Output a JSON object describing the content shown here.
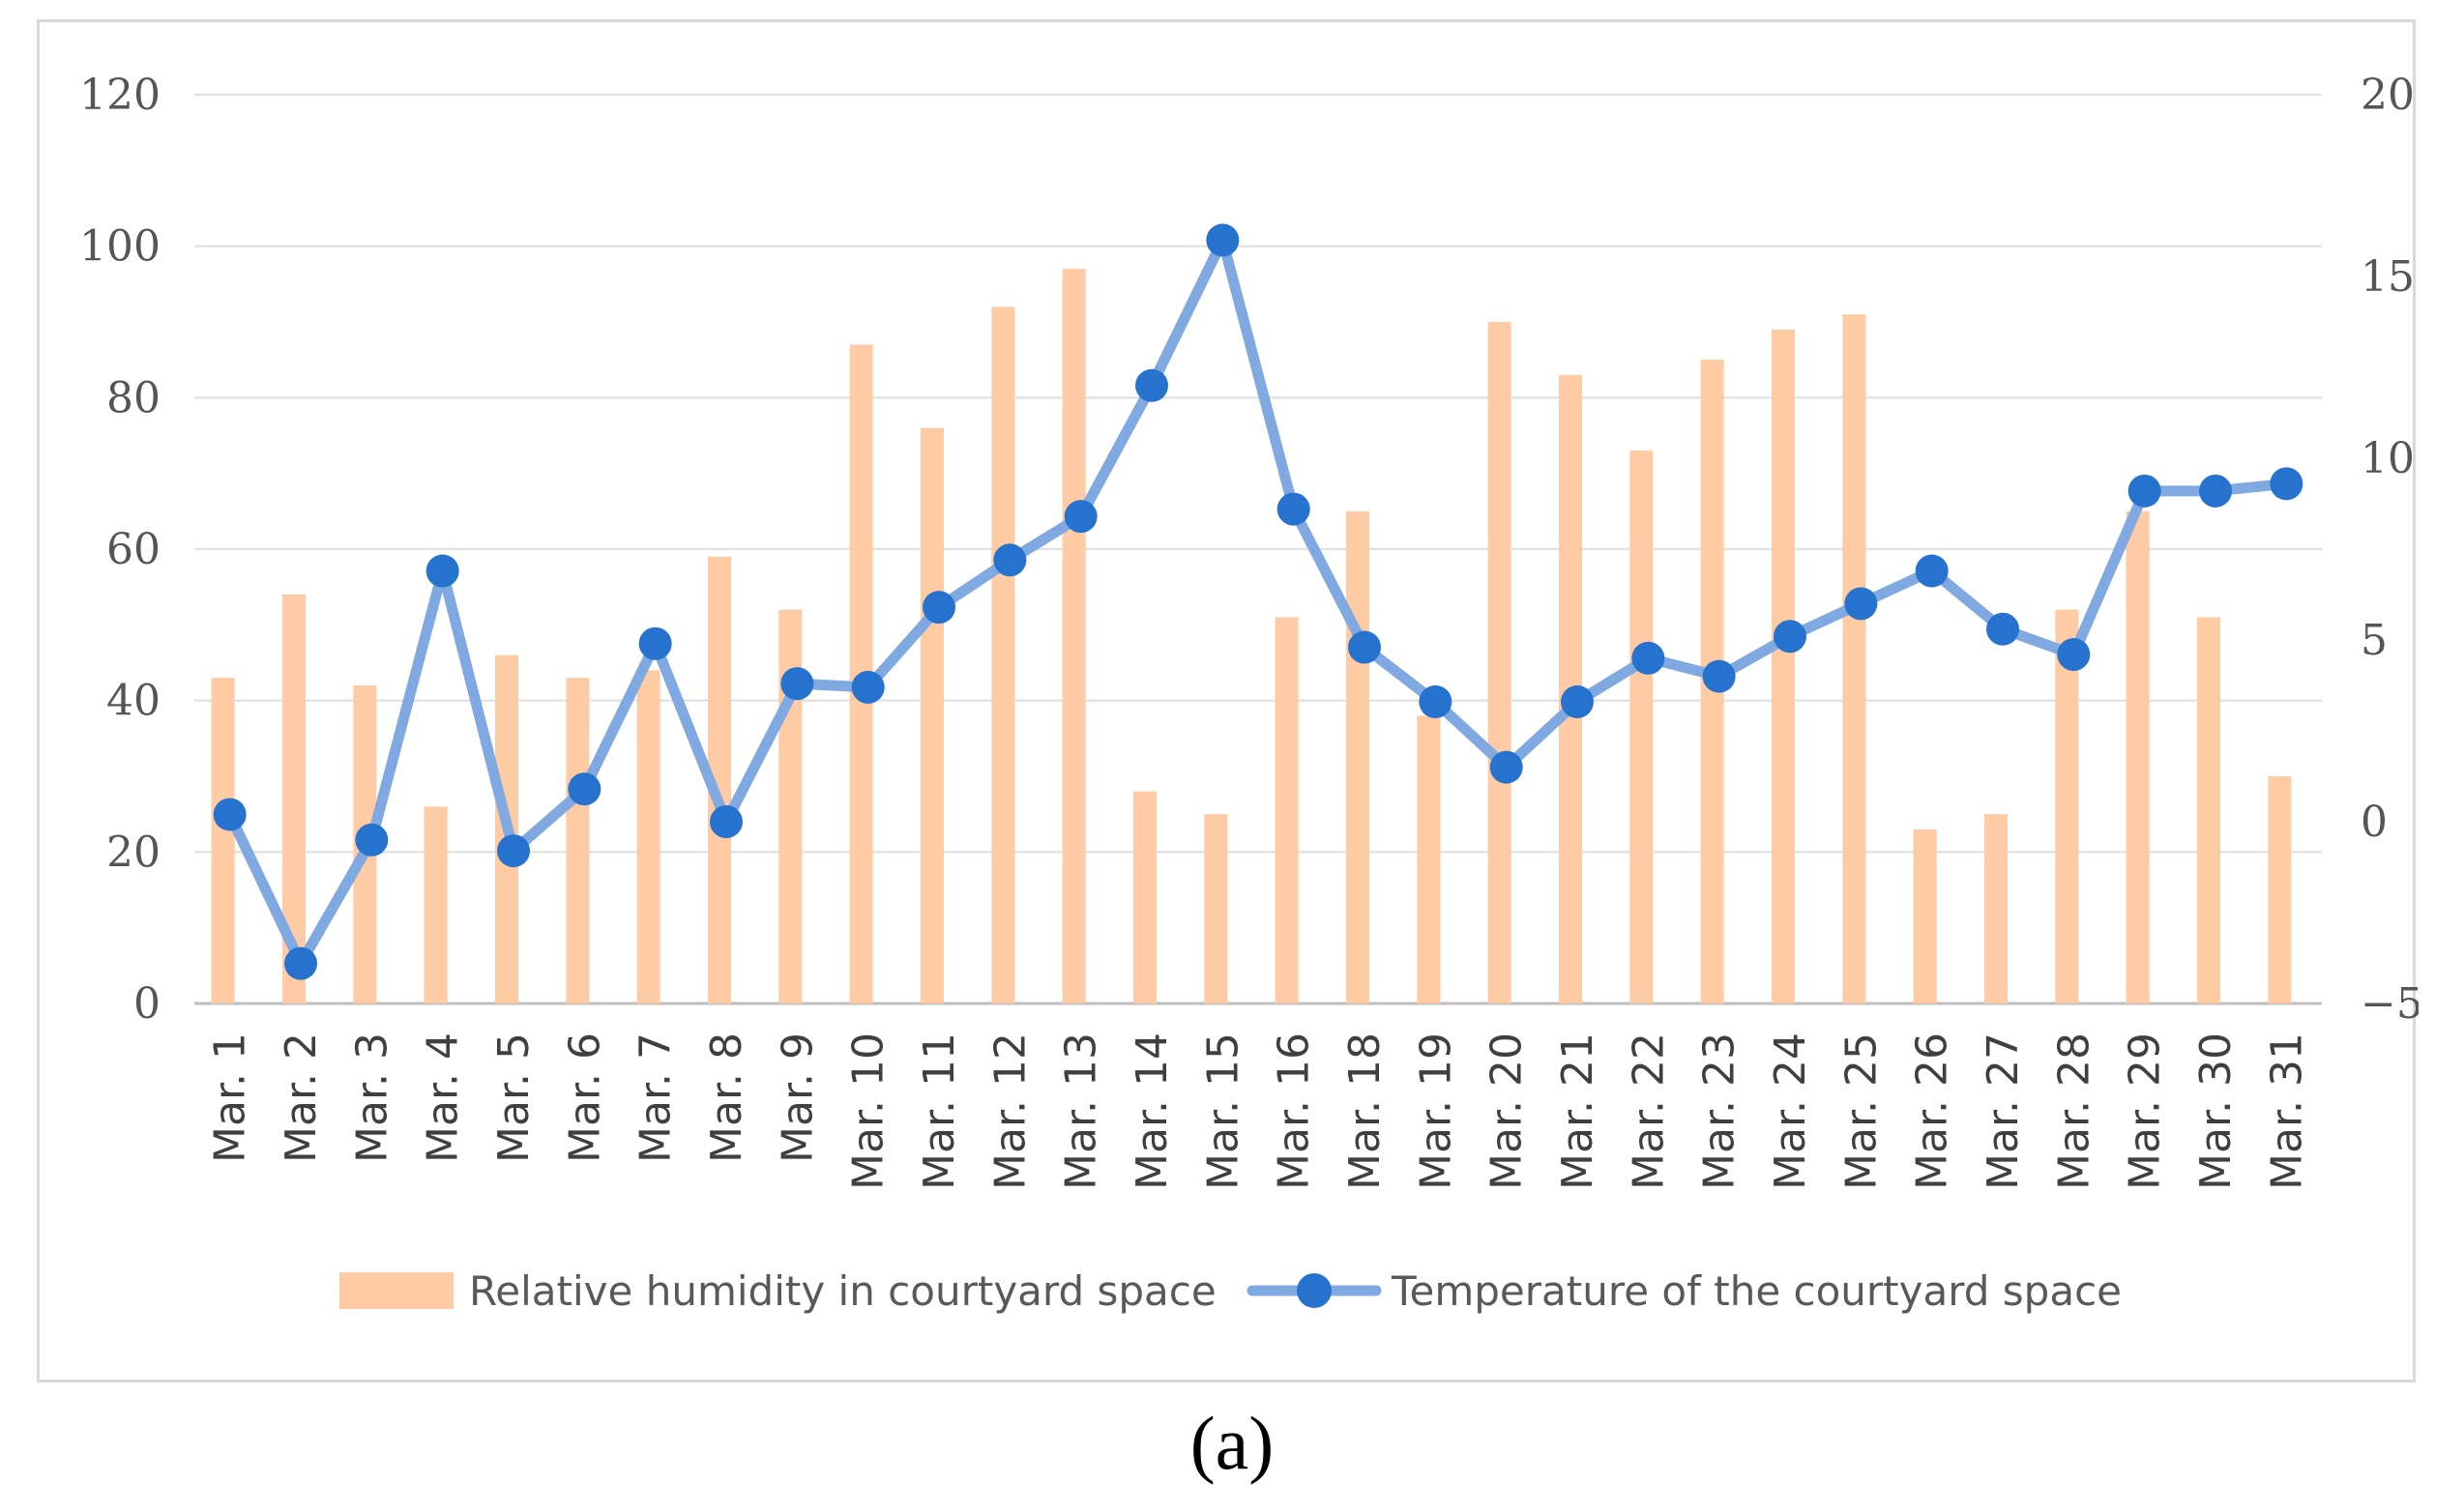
{
  "chart_data": {
    "type": "bar",
    "categories": [
      "Mar. 1",
      "Mar. 2",
      "Mar. 3",
      "Mar. 4",
      "Mar. 5",
      "Mar. 6",
      "Mar. 7",
      "Mar. 8",
      "Mar. 9",
      "Mar. 10",
      "Mar. 11",
      "Mar. 12",
      "Mar. 13",
      "Mar. 14",
      "Mar. 15",
      "Mar. 16",
      "Mar. 18",
      "Mar. 19",
      "Mar. 20",
      "Mar. 21",
      "Mar. 22",
      "Mar. 23",
      "Mar. 24",
      "Mar. 25",
      "Mar. 26",
      "Mar. 27",
      "Mar. 28",
      "Mar. 29",
      "Mar. 30",
      "Mar. 31"
    ],
    "series": [
      {
        "name": "Relative humidity in courtyard space",
        "type": "bar",
        "axis": "left",
        "color": "#FFCBA4",
        "values": [
          43,
          54,
          42,
          26,
          46,
          43,
          44,
          59,
          52,
          87,
          76,
          92,
          97,
          28,
          25,
          51,
          65,
          38,
          90,
          83,
          73,
          85,
          89,
          91,
          23,
          25,
          52,
          65,
          51,
          30
        ]
      },
      {
        "name": "Temperature of the courtyard space",
        "type": "line",
        "axis": "right",
        "color": "#7FA9E0",
        "marker_color": "#2672CF",
        "values": [
          0.2,
          -3.9,
          -0.5,
          6.9,
          -0.8,
          0.9,
          4.9,
          0.0,
          3.8,
          3.7,
          5.9,
          7.2,
          8.4,
          12.0,
          16.0,
          8.6,
          4.8,
          3.3,
          1.5,
          3.3,
          4.5,
          4.0,
          5.1,
          6.0,
          6.9,
          5.3,
          4.6,
          9.1,
          9.1,
          9.3
        ]
      }
    ],
    "y_left": {
      "min": 0,
      "max": 120,
      "ticks": [
        0,
        20,
        40,
        60,
        80,
        100,
        120
      ]
    },
    "y_right": {
      "min": -5,
      "max": 20,
      "ticks": [
        "−5",
        "0",
        "5",
        "10",
        "15",
        "20"
      ],
      "tick_values": [
        -5,
        0,
        5,
        10,
        15,
        20
      ]
    },
    "grid": true,
    "legend": "bottom",
    "panel_label": "(a)"
  }
}
